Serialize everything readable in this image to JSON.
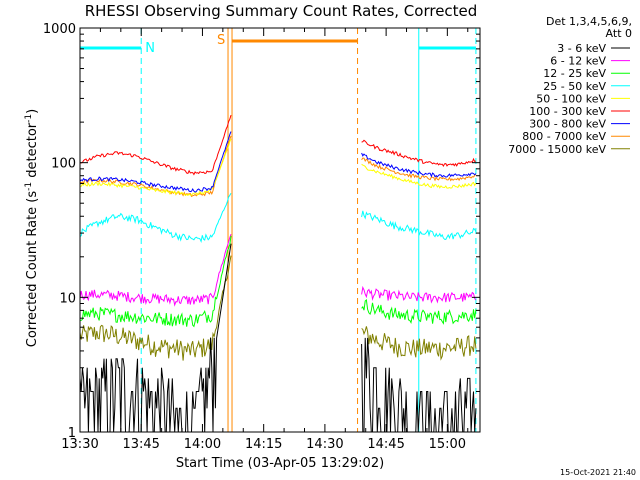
{
  "chart_data": {
    "type": "line",
    "title": "RHESSI Observing Summary Count Rates, Corrected",
    "xlabel": "Start Time (03-Apr-05 13:29:02)",
    "ylabel_main": "Corrected Count Rate (s",
    "ylabel_sup": "-1",
    "ylabel_mid": " detector",
    "ylabel_sup2": "-1",
    "ylabel_end": ")",
    "y_scale": "log",
    "ylim": [
      1,
      1000
    ],
    "xlim": [
      "13:30",
      "15:08"
    ],
    "x_ticks": [
      "13:30",
      "13:45",
      "14:00",
      "14:15",
      "14:30",
      "14:45",
      "15:00"
    ],
    "y_ticks": [
      "1",
      "10",
      "100",
      "1000"
    ],
    "legend_header": [
      "Det 1,3,4,5,6,9,",
      "Att 0"
    ],
    "legend_position": "right",
    "footer_timestamp": "15-Oct-2021 21:40",
    "annotations": {
      "night_label": "N",
      "saa_label": "S"
    },
    "night_intervals": [
      [
        "13:30",
        "13:45"
      ],
      [
        "14:53",
        "15:07"
      ]
    ],
    "saa_intervals": [
      [
        "14:07",
        "14:38"
      ]
    ],
    "data_gap": [
      "14:08",
      "14:39"
    ],
    "series": [
      {
        "name": "3 - 6 keV",
        "color": "#000000",
        "pre": {
          "start": "13:30",
          "end": "14:07",
          "values": [
            1.5,
            1.8,
            2.2,
            2.0,
            1.6,
            1.3,
            1.0,
            3.0,
            25
          ]
        },
        "post": {
          "start": "14:39",
          "end": "15:07",
          "values": [
            3.2,
            2.4,
            1.6,
            1.3,
            1.2,
            1.2,
            1.3,
            1.4
          ]
        }
      },
      {
        "name": "6 - 12 keV",
        "color": "#ff00ff",
        "pre": {
          "start": "13:30",
          "end": "14:07",
          "values": [
            10.5,
            10.5,
            10.3,
            10.0,
            9.8,
            9.6,
            9.5,
            9.8,
            30
          ]
        },
        "post": {
          "start": "14:39",
          "end": "15:07",
          "values": [
            11,
            10.5,
            10.3,
            10.0,
            10.0,
            10.0,
            10.0,
            10.0
          ]
        }
      },
      {
        "name": "12 - 25 keV",
        "color": "#00ff00",
        "pre": {
          "start": "13:30",
          "end": "14:07",
          "values": [
            7.5,
            7.6,
            7.4,
            7.2,
            7.0,
            6.9,
            6.8,
            7.5,
            28
          ]
        },
        "post": {
          "start": "14:39",
          "end": "15:07",
          "values": [
            9.0,
            8.0,
            7.5,
            7.3,
            7.2,
            7.2,
            7.3,
            7.5
          ]
        }
      },
      {
        "name": "25 - 50 keV",
        "color": "#00ffff",
        "pre": {
          "start": "13:30",
          "end": "14:07",
          "values": [
            30,
            36,
            40,
            38,
            33,
            29,
            27,
            28,
            60
          ]
        },
        "post": {
          "start": "14:39",
          "end": "15:07",
          "values": [
            42,
            38,
            34,
            32,
            30,
            28,
            29,
            31
          ]
        }
      },
      {
        "name": "50 - 100 keV",
        "color": "#ffff00",
        "pre": {
          "start": "13:30",
          "end": "14:07",
          "values": [
            68,
            70,
            68,
            66,
            62,
            60,
            58,
            62,
            150
          ]
        },
        "post": {
          "start": "14:39",
          "end": "15:07",
          "values": [
            95,
            85,
            78,
            72,
            68,
            66,
            67,
            70
          ]
        }
      },
      {
        "name": "100 - 300 keV",
        "color": "#ff0000",
        "pre": {
          "start": "13:30",
          "end": "14:07",
          "values": [
            100,
            112,
            118,
            112,
            100,
            90,
            84,
            86,
            225
          ]
        },
        "post": {
          "start": "14:39",
          "end": "15:07",
          "values": [
            145,
            128,
            118,
            108,
            100,
            96,
            98,
            105
          ]
        }
      },
      {
        "name": "300 - 800 keV",
        "color": "#0000ff",
        "pre": {
          "start": "13:30",
          "end": "14:07",
          "values": [
            74,
            76,
            75,
            72,
            68,
            65,
            62,
            65,
            170
          ]
        },
        "post": {
          "start": "14:39",
          "end": "15:07",
          "values": [
            115,
            100,
            92,
            86,
            82,
            80,
            81,
            84
          ]
        }
      },
      {
        "name": "800 - 7000 keV",
        "color": "#ff8800",
        "pre": {
          "start": "13:30",
          "end": "14:07",
          "values": [
            72,
            74,
            72,
            69,
            64,
            60,
            57,
            60,
            160
          ]
        },
        "post": {
          "start": "14:39",
          "end": "15:07",
          "values": [
            108,
            94,
            86,
            80,
            77,
            75,
            76,
            80
          ]
        }
      },
      {
        "name": "7000 - 15000 keV",
        "color": "#808000",
        "pre": {
          "start": "13:30",
          "end": "14:07",
          "values": [
            5.2,
            5.5,
            5.2,
            4.8,
            4.4,
            4.2,
            4.0,
            4.5,
            20
          ]
        },
        "post": {
          "start": "14:39",
          "end": "15:07",
          "values": [
            5.5,
            4.8,
            4.4,
            4.2,
            4.2,
            4.2,
            4.3,
            4.5
          ]
        }
      }
    ]
  }
}
